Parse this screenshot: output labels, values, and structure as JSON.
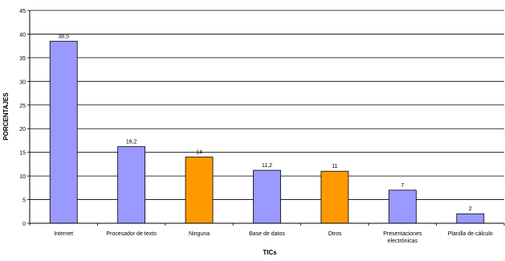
{
  "chart_data": {
    "type": "bar",
    "title": "",
    "xlabel": "TICs",
    "ylabel": "PORCENTAJES",
    "ylim": [
      0,
      45
    ],
    "yticks": [
      0,
      5,
      10,
      15,
      20,
      25,
      30,
      35,
      40,
      45
    ],
    "grid": true,
    "legend": "none",
    "categories": [
      "Internet",
      "Procesador de texto",
      "Ninguna",
      "Base de datos",
      "Otros",
      "Presentaciones electrónicas",
      "Planilla de cálculo"
    ],
    "values": [
      38.5,
      16.2,
      14,
      11.2,
      11,
      7,
      2
    ],
    "data_labels": [
      "38,5",
      "16,2",
      "14",
      "11,2",
      "11",
      "7",
      "2"
    ],
    "colors": [
      "#9999ff",
      "#9999ff",
      "#ff9900",
      "#9999ff",
      "#ff9900",
      "#9999ff",
      "#9999ff"
    ],
    "gridline_color": "#000000",
    "bar_outline_color": "#000000"
  }
}
